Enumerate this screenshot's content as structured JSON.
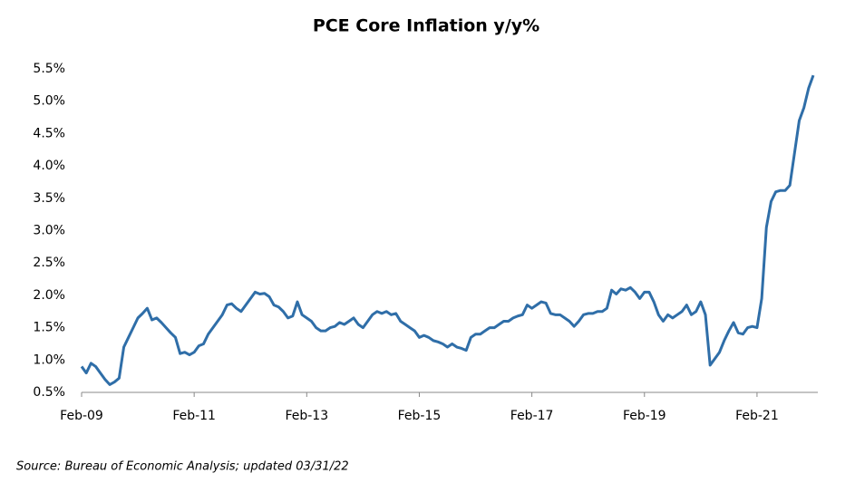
{
  "chart_data": {
    "type": "line",
    "title": "PCE Core Inflation y/y%",
    "source": "Source: Bureau of Economic Analysis; updated 03/31/22",
    "categories": [
      "Feb-09",
      null,
      null,
      null,
      null,
      null,
      null,
      null,
      null,
      null,
      null,
      null,
      null,
      null,
      null,
      null,
      null,
      null,
      null,
      null,
      null,
      null,
      null,
      null,
      "Feb-11",
      null,
      null,
      null,
      null,
      null,
      null,
      null,
      null,
      null,
      null,
      null,
      null,
      null,
      null,
      null,
      null,
      null,
      null,
      null,
      null,
      null,
      null,
      null,
      "Feb-13",
      null,
      null,
      null,
      null,
      null,
      null,
      null,
      null,
      null,
      null,
      null,
      null,
      null,
      null,
      null,
      null,
      null,
      null,
      null,
      null,
      null,
      null,
      null,
      "Feb-15",
      null,
      null,
      null,
      null,
      null,
      null,
      null,
      null,
      null,
      null,
      null,
      null,
      null,
      null,
      null,
      null,
      null,
      null,
      null,
      null,
      null,
      null,
      null,
      "Feb-17",
      null,
      null,
      null,
      null,
      null,
      null,
      null,
      null,
      null,
      null,
      null,
      null,
      null,
      null,
      null,
      null,
      null,
      null,
      null,
      null,
      null,
      null,
      null,
      "Feb-19",
      null,
      null,
      null,
      null,
      null,
      null,
      null,
      null,
      null,
      null,
      null,
      null,
      null,
      null,
      null,
      null,
      null,
      null,
      null,
      null,
      null,
      null,
      null,
      "Feb-21",
      null,
      null,
      null,
      null,
      null,
      null,
      null,
      null,
      null,
      null,
      null,
      null
    ],
    "series": [
      {
        "name": "PCE Core",
        "color": "#2f6ea8",
        "values": [
          0.9,
          0.8,
          0.95,
          0.9,
          0.8,
          0.7,
          0.62,
          0.66,
          0.72,
          1.2,
          1.35,
          1.5,
          1.65,
          1.72,
          1.8,
          1.62,
          1.65,
          1.58,
          1.5,
          1.42,
          1.35,
          1.1,
          1.12,
          1.08,
          1.12,
          1.22,
          1.25,
          1.4,
          1.5,
          1.6,
          1.7,
          1.85,
          1.87,
          1.8,
          1.75,
          1.85,
          1.95,
          2.05,
          2.02,
          2.03,
          1.98,
          1.85,
          1.82,
          1.75,
          1.65,
          1.68,
          1.9,
          1.7,
          1.65,
          1.6,
          1.5,
          1.45,
          1.45,
          1.5,
          1.52,
          1.58,
          1.55,
          1.6,
          1.65,
          1.55,
          1.5,
          1.6,
          1.7,
          1.75,
          1.72,
          1.75,
          1.7,
          1.72,
          1.6,
          1.55,
          1.5,
          1.45,
          1.35,
          1.38,
          1.35,
          1.3,
          1.28,
          1.25,
          1.2,
          1.25,
          1.2,
          1.18,
          1.15,
          1.35,
          1.4,
          1.4,
          1.45,
          1.5,
          1.5,
          1.55,
          1.6,
          1.6,
          1.65,
          1.68,
          1.7,
          1.85,
          1.8,
          1.85,
          1.9,
          1.88,
          1.72,
          1.7,
          1.7,
          1.65,
          1.6,
          1.52,
          1.6,
          1.7,
          1.72,
          1.72,
          1.75,
          1.75,
          1.8,
          2.08,
          2.02,
          2.1,
          2.08,
          2.12,
          2.05,
          1.95,
          2.05,
          2.05,
          1.9,
          1.7,
          1.6,
          1.7,
          1.65,
          1.7,
          1.75,
          1.85,
          1.7,
          1.75,
          1.9,
          1.7,
          0.92,
          1.02,
          1.12,
          1.3,
          1.45,
          1.58,
          1.42,
          1.4,
          1.5,
          1.52,
          1.5,
          1.95,
          3.05,
          3.45,
          3.6,
          3.62,
          3.62,
          3.7,
          4.2,
          4.7,
          4.9,
          5.2,
          5.4
        ]
      }
    ],
    "ylim": [
      0.5,
      5.5
    ],
    "yticks": [
      {
        "value": 0.5,
        "label": "0.5%"
      },
      {
        "value": 1.0,
        "label": "1.0%"
      },
      {
        "value": 1.5,
        "label": "1.5%"
      },
      {
        "value": 2.0,
        "label": "2.0%"
      },
      {
        "value": 2.5,
        "label": "2.5%"
      },
      {
        "value": 3.0,
        "label": "3.0%"
      },
      {
        "value": 3.5,
        "label": "3.5%"
      },
      {
        "value": 4.0,
        "label": "4.0%"
      },
      {
        "value": 4.5,
        "label": "4.5%"
      },
      {
        "value": 5.0,
        "label": "5.0%"
      },
      {
        "value": 5.5,
        "label": "5.5%"
      }
    ],
    "grid": false
  }
}
